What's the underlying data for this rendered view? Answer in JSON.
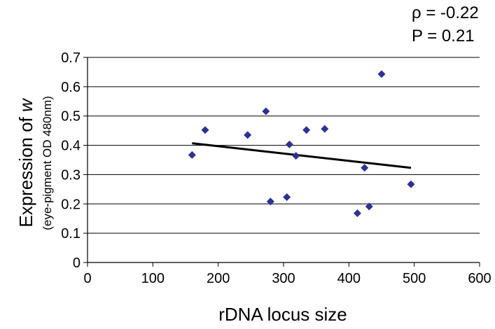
{
  "chart_data": {
    "type": "scatter",
    "xlabel": "rDNA locus size",
    "ylabel_main": "Expression of ",
    "ylabel_var": "w",
    "ylabel_sub": "(eye-pigment OD 480nm)",
    "annotation": {
      "rho": "ρ = -0.22",
      "p": "P = 0.21"
    },
    "xlim": [
      0,
      600
    ],
    "ylim": [
      0,
      0.7
    ],
    "x_ticks": [
      0,
      100,
      200,
      300,
      400,
      500,
      600
    ],
    "y_ticks": [
      0,
      0.1,
      0.2,
      0.3,
      0.4,
      0.5,
      0.6,
      0.7
    ],
    "y_tick_labels": [
      "0",
      "0.1",
      "0.2",
      "0.3",
      "0.4",
      "0.5",
      "0.6",
      "0.7"
    ],
    "grid": "horizontal",
    "marker": "diamond",
    "marker_color": "#2e3192",
    "trendline_color": "#000000",
    "points": [
      {
        "x": 160,
        "y": 0.367
      },
      {
        "x": 180,
        "y": 0.452
      },
      {
        "x": 245,
        "y": 0.435
      },
      {
        "x": 273,
        "y": 0.516
      },
      {
        "x": 280,
        "y": 0.208
      },
      {
        "x": 305,
        "y": 0.223
      },
      {
        "x": 309,
        "y": 0.403
      },
      {
        "x": 319,
        "y": 0.364
      },
      {
        "x": 335,
        "y": 0.452
      },
      {
        "x": 363,
        "y": 0.456
      },
      {
        "x": 413,
        "y": 0.168
      },
      {
        "x": 424,
        "y": 0.323
      },
      {
        "x": 431,
        "y": 0.191
      },
      {
        "x": 450,
        "y": 0.643
      },
      {
        "x": 495,
        "y": 0.267
      }
    ],
    "trendline": {
      "x": [
        160,
        495
      ],
      "y": [
        0.407,
        0.323
      ]
    }
  }
}
